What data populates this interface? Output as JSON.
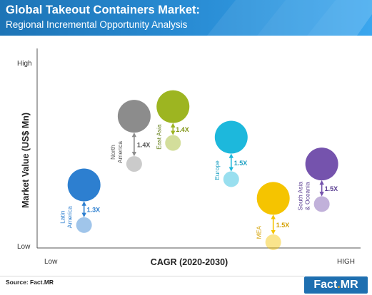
{
  "header": {
    "title": "Global Takeout Containers Market:",
    "subtitle": "Regional Incremental Opportunity Analysis"
  },
  "chart_data": {
    "type": "scatter",
    "title": "Global Takeout Containers Market:",
    "subtitle": "Regional Incremental Opportunity Analysis",
    "xlabel": "CAGR (2020-2030)",
    "ylabel": "Market Value (US$ Mn)",
    "x_low_label": "Low",
    "x_high_label": "HIGH",
    "y_low_label": "Low",
    "y_high_label": "High",
    "xlim": [
      0,
      100
    ],
    "ylim": [
      0,
      100
    ],
    "grid": false,
    "points": [
      {
        "region": [
          "Latin",
          "America"
        ],
        "multiplier": "1.3X",
        "x": 14.5,
        "y_large": 33,
        "y_small": 12,
        "color": "#2d7fd0",
        "arrow_color": "#2d7fd0",
        "text_color": "#2d7fd0"
      },
      {
        "region": [
          "North",
          "America"
        ],
        "multiplier": "1.4X",
        "x": 30,
        "y_large": 69,
        "y_small": 44,
        "color": "#8c8c8c",
        "arrow_color": "#8c8c8c",
        "text_color": "#555555"
      },
      {
        "region": [
          "East Asia"
        ],
        "multiplier": "1.4X",
        "x": 42,
        "y_large": 74,
        "y_small": 55,
        "color": "#9db521",
        "arrow_color": "#9db521",
        "text_color": "#7f9413",
        "label_color": "#5f7a10"
      },
      {
        "region": [
          "Europe"
        ],
        "multiplier": "1.5X",
        "x": 60,
        "y_large": 58,
        "y_small": 36,
        "color": "#1db8dc",
        "arrow_color": "#1db8dc",
        "text_color": "#1a9fc2"
      },
      {
        "region": [
          "MEA"
        ],
        "multiplier": "1.5X",
        "x": 73,
        "y_large": 26,
        "y_small": 3,
        "color": "#f5c400",
        "arrow_color": "#f5c400",
        "text_color": "#d4a000"
      },
      {
        "region": [
          "South Asia",
          "& Oceania"
        ],
        "multiplier": "1.5X",
        "x": 88,
        "y_large": 44,
        "y_small": 23,
        "color": "#7553ad",
        "arrow_color": "#7553ad",
        "text_color": "#5b3f92"
      }
    ]
  },
  "footer": {
    "source": "Source: Fact.MR",
    "logo_text": "Fact",
    "logo_dot": ".",
    "logo_suffix": "MR"
  }
}
